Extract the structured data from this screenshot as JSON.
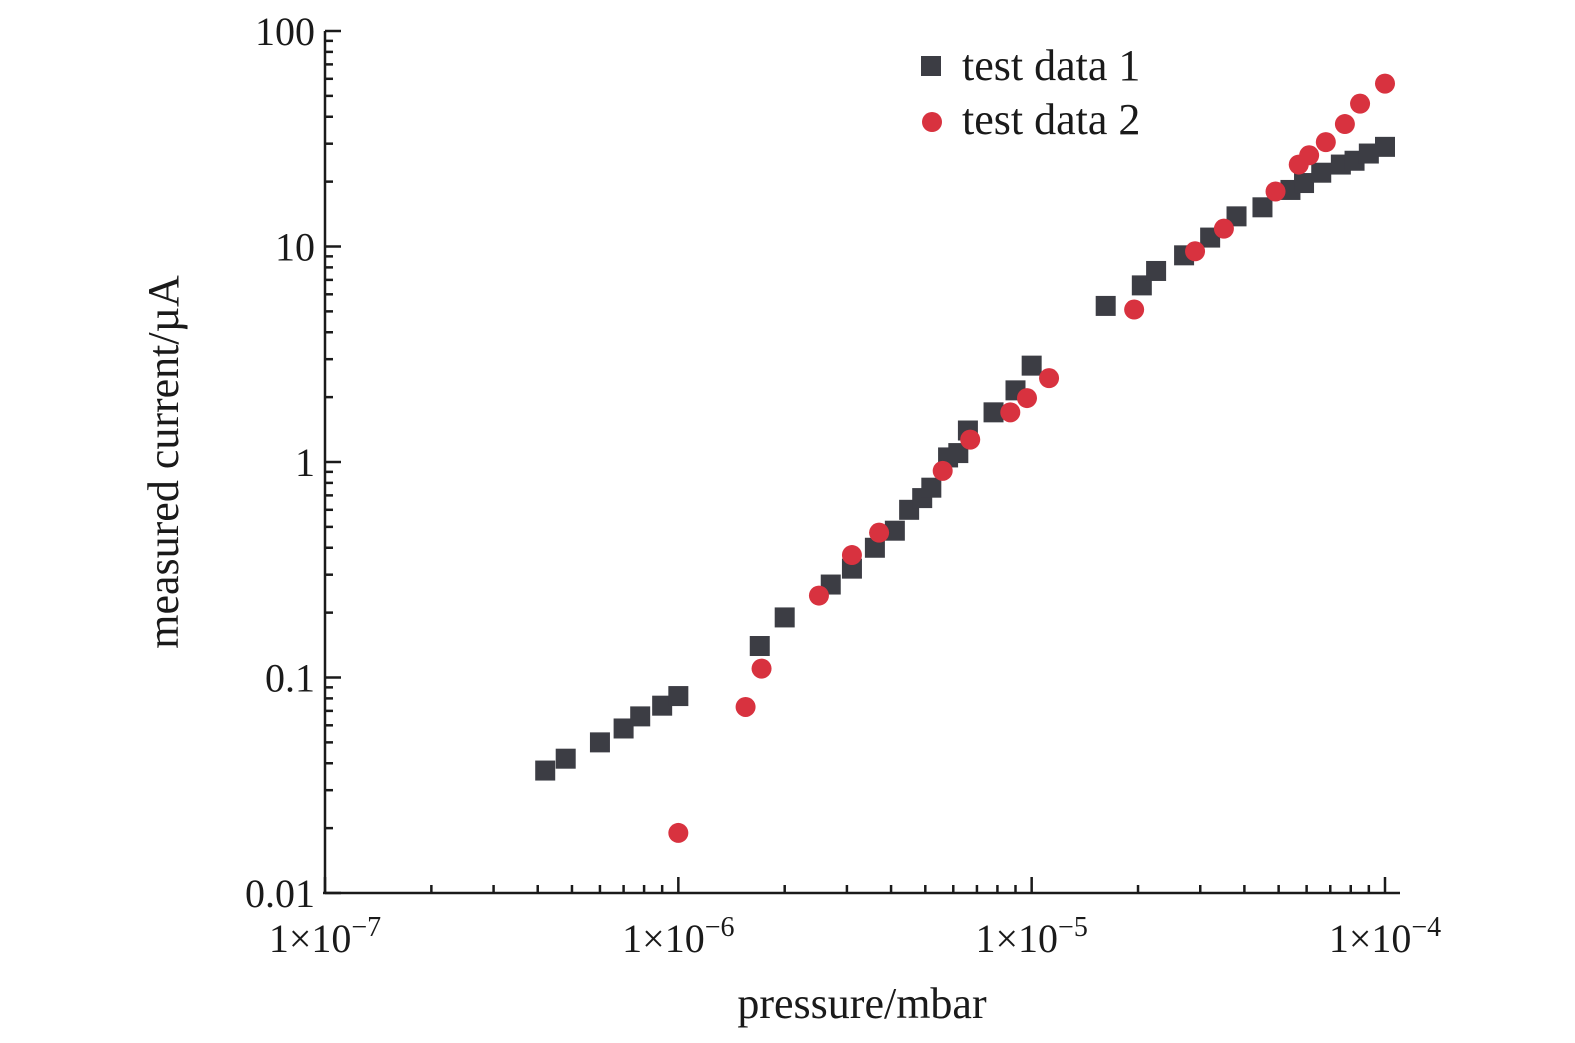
{
  "chart_data": {
    "type": "scatter",
    "xlabel": "pressure/mbar",
    "ylabel": "measured current/µA",
    "x_scale": "log",
    "y_scale": "log",
    "xlim": [
      1e-07,
      0.0001
    ],
    "ylim": [
      0.01,
      100
    ],
    "x_ticks": [
      {
        "value": 1e-07,
        "mantissa": "1×10",
        "exp": "−7"
      },
      {
        "value": 1e-06,
        "mantissa": "1×10",
        "exp": "−6"
      },
      {
        "value": 1e-05,
        "mantissa": "1×10",
        "exp": "−5"
      },
      {
        "value": 0.0001,
        "mantissa": "1×10",
        "exp": "−4"
      }
    ],
    "y_ticks": [
      {
        "value": 0.01,
        "label": "0.01"
      },
      {
        "value": 0.1,
        "label": "0.1"
      },
      {
        "value": 1,
        "label": "1"
      },
      {
        "value": 10,
        "label": "10"
      },
      {
        "value": 100,
        "label": "100"
      }
    ],
    "legend_position": "top-right",
    "series": [
      {
        "name": "test data 1",
        "marker": "square",
        "color": "#3c3d44",
        "points": [
          [
            4.2e-07,
            0.037
          ],
          [
            4.8e-07,
            0.042
          ],
          [
            6e-07,
            0.05
          ],
          [
            7e-07,
            0.058
          ],
          [
            7.8e-07,
            0.066
          ],
          [
            9e-07,
            0.074
          ],
          [
            1e-06,
            0.082
          ],
          [
            1.7e-06,
            0.14
          ],
          [
            2e-06,
            0.19
          ],
          [
            2.7e-06,
            0.27
          ],
          [
            3.1e-06,
            0.32
          ],
          [
            3.6e-06,
            0.4
          ],
          [
            4.1e-06,
            0.48
          ],
          [
            4.5e-06,
            0.6
          ],
          [
            4.9e-06,
            0.68
          ],
          [
            5.2e-06,
            0.76
          ],
          [
            5.8e-06,
            1.05
          ],
          [
            6.2e-06,
            1.1
          ],
          [
            6.6e-06,
            1.4
          ],
          [
            7.8e-06,
            1.7
          ],
          [
            9e-06,
            2.15
          ],
          [
            1e-05,
            2.8
          ],
          [
            1.62e-05,
            5.3
          ],
          [
            2.05e-05,
            6.6
          ],
          [
            2.25e-05,
            7.7
          ],
          [
            2.7e-05,
            9.1
          ],
          [
            3.2e-05,
            11.0
          ],
          [
            3.8e-05,
            13.8
          ],
          [
            4.5e-05,
            15.2
          ],
          [
            5.4e-05,
            18.3
          ],
          [
            5.9e-05,
            19.7
          ],
          [
            6.6e-05,
            22.0
          ],
          [
            7.5e-05,
            24.0
          ],
          [
            8.2e-05,
            25.0
          ],
          [
            9e-05,
            27.0
          ],
          [
            0.0001,
            29.0
          ]
        ]
      },
      {
        "name": "test data 2",
        "marker": "circle",
        "color": "#d8323f",
        "points": [
          [
            1e-06,
            0.019
          ],
          [
            1.55e-06,
            0.073
          ],
          [
            1.72e-06,
            0.11
          ],
          [
            2.5e-06,
            0.24
          ],
          [
            3.1e-06,
            0.37
          ],
          [
            3.7e-06,
            0.47
          ],
          [
            5.6e-06,
            0.91
          ],
          [
            6.7e-06,
            1.27
          ],
          [
            8.7e-06,
            1.7
          ],
          [
            9.7e-06,
            1.98
          ],
          [
            1.12e-05,
            2.45
          ],
          [
            1.95e-05,
            5.1
          ],
          [
            2.9e-05,
            9.5
          ],
          [
            3.5e-05,
            12.1
          ],
          [
            4.9e-05,
            18.0
          ],
          [
            5.7e-05,
            24.0
          ],
          [
            6.1e-05,
            26.5
          ],
          [
            6.8e-05,
            30.5
          ],
          [
            7.7e-05,
            37.0
          ],
          [
            8.5e-05,
            46.0
          ],
          [
            0.0001,
            57.0
          ]
        ]
      }
    ]
  }
}
